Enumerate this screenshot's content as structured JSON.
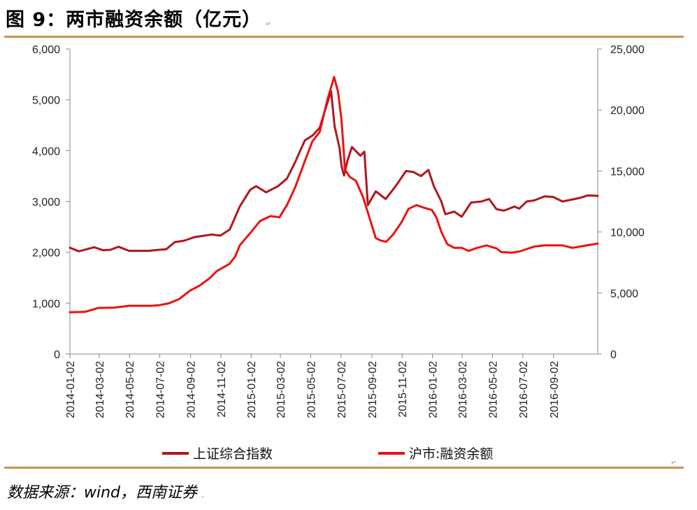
{
  "figure": {
    "title": "图 9：两市融资余额（亿元）",
    "source": "数据来源：wind，西南证券"
  },
  "colors": {
    "series_index": "#b0171f",
    "series_margin": "#ee1111",
    "rule": "#c8944a",
    "axis": "#888888"
  },
  "chart_data": {
    "type": "line",
    "title": "两市融资余额（亿元）",
    "x_axis": {
      "type": "date",
      "range": [
        "2014-01-02",
        "2016-11-30"
      ],
      "tick_labels": [
        "2014-01-02",
        "2014-03-02",
        "2014-05-02",
        "2014-07-02",
        "2014-09-02",
        "2014-11-02",
        "2015-01-02",
        "2015-03-02",
        "2015-05-02",
        "2015-07-02",
        "2015-09-02",
        "2015-11-02",
        "2016-01-02",
        "2016-03-02",
        "2016-05-02",
        "2016-07-02",
        "2016-09-02"
      ]
    },
    "y_axis_left": {
      "range": [
        0,
        6000
      ],
      "ticks": [
        0,
        1000,
        2000,
        3000,
        4000,
        5000,
        6000
      ],
      "tick_labels": [
        "0",
        "1,000",
        "2,000",
        "3,000",
        "4,000",
        "5,000",
        "6,000"
      ]
    },
    "y_axis_right": {
      "range": [
        0,
        25000
      ],
      "ticks": [
        0,
        5000,
        10000,
        15000,
        20000,
        25000
      ],
      "tick_labels": [
        "0",
        "5,000",
        "10,000",
        "15,000",
        "20,000",
        "25,000"
      ]
    },
    "grid": false,
    "legend_position": "bottom",
    "series": [
      {
        "name": "上证综合指数",
        "axis": "left",
        "color": "#b0171f",
        "points": [
          [
            "2014-01-02",
            2090
          ],
          [
            "2014-01-20",
            2020
          ],
          [
            "2014-02-20",
            2100
          ],
          [
            "2014-03-10",
            2040
          ],
          [
            "2014-03-25",
            2050
          ],
          [
            "2014-04-10",
            2110
          ],
          [
            "2014-05-01",
            2030
          ],
          [
            "2014-05-20",
            2030
          ],
          [
            "2014-06-10",
            2030
          ],
          [
            "2014-07-01",
            2050
          ],
          [
            "2014-07-15",
            2060
          ],
          [
            "2014-08-01",
            2200
          ],
          [
            "2014-08-20",
            2230
          ],
          [
            "2014-09-10",
            2300
          ],
          [
            "2014-09-25",
            2320
          ],
          [
            "2014-10-15",
            2350
          ],
          [
            "2014-11-01",
            2330
          ],
          [
            "2014-11-20",
            2450
          ],
          [
            "2014-12-10",
            2900
          ],
          [
            "2014-12-31",
            3230
          ],
          [
            "2015-01-12",
            3300
          ],
          [
            "2015-02-01",
            3180
          ],
          [
            "2015-02-25",
            3300
          ],
          [
            "2015-03-15",
            3450
          ],
          [
            "2015-03-31",
            3760
          ],
          [
            "2015-04-20",
            4200
          ],
          [
            "2015-05-06",
            4300
          ],
          [
            "2015-05-20",
            4450
          ],
          [
            "2015-06-08",
            5050
          ],
          [
            "2015-06-12",
            5170
          ],
          [
            "2015-06-19",
            4480
          ],
          [
            "2015-06-29",
            4050
          ],
          [
            "2015-07-03",
            3700
          ],
          [
            "2015-07-08",
            3510
          ],
          [
            "2015-07-15",
            3800
          ],
          [
            "2015-07-24",
            4070
          ],
          [
            "2015-08-10",
            3900
          ],
          [
            "2015-08-18",
            3980
          ],
          [
            "2015-08-25",
            2930
          ],
          [
            "2015-09-10",
            3200
          ],
          [
            "2015-09-30",
            3050
          ],
          [
            "2015-10-20",
            3300
          ],
          [
            "2015-11-10",
            3600
          ],
          [
            "2015-11-25",
            3580
          ],
          [
            "2015-12-10",
            3500
          ],
          [
            "2015-12-25",
            3620
          ],
          [
            "2016-01-05",
            3300
          ],
          [
            "2016-01-20",
            3000
          ],
          [
            "2016-01-28",
            2750
          ],
          [
            "2016-02-15",
            2800
          ],
          [
            "2016-03-01",
            2700
          ],
          [
            "2016-03-20",
            2980
          ],
          [
            "2016-04-10",
            3000
          ],
          [
            "2016-04-25",
            3050
          ],
          [
            "2016-05-10",
            2850
          ],
          [
            "2016-05-25",
            2820
          ],
          [
            "2016-06-15",
            2900
          ],
          [
            "2016-06-25",
            2860
          ],
          [
            "2016-07-10",
            3000
          ],
          [
            "2016-07-25",
            3020
          ],
          [
            "2016-08-15",
            3100
          ],
          [
            "2016-09-01",
            3090
          ],
          [
            "2016-09-20",
            3000
          ],
          [
            "2016-10-10",
            3040
          ],
          [
            "2016-10-25",
            3070
          ],
          [
            "2016-11-10",
            3120
          ],
          [
            "2016-11-30",
            3110
          ]
        ]
      },
      {
        "name": "沪市:融资余额",
        "axis": "right",
        "color": "#ee1111",
        "points": [
          [
            "2014-01-02",
            3420
          ],
          [
            "2014-02-01",
            3450
          ],
          [
            "2014-03-01",
            3780
          ],
          [
            "2014-04-01",
            3800
          ],
          [
            "2014-05-01",
            3950
          ],
          [
            "2014-06-01",
            3950
          ],
          [
            "2014-06-15",
            3950
          ],
          [
            "2014-07-01",
            4000
          ],
          [
            "2014-07-20",
            4150
          ],
          [
            "2014-08-10",
            4500
          ],
          [
            "2014-09-01",
            5200
          ],
          [
            "2014-09-20",
            5600
          ],
          [
            "2014-10-10",
            6200
          ],
          [
            "2014-10-25",
            6800
          ],
          [
            "2014-11-20",
            7400
          ],
          [
            "2014-12-01",
            8000
          ],
          [
            "2014-12-10",
            8900
          ],
          [
            "2014-12-31",
            9900
          ],
          [
            "2015-01-20",
            10900
          ],
          [
            "2015-02-10",
            11300
          ],
          [
            "2015-02-28",
            11200
          ],
          [
            "2015-03-15",
            12200
          ],
          [
            "2015-04-01",
            13700
          ],
          [
            "2015-04-20",
            15800
          ],
          [
            "2015-05-05",
            17400
          ],
          [
            "2015-05-20",
            18200
          ],
          [
            "2015-06-05",
            20900
          ],
          [
            "2015-06-18",
            22700
          ],
          [
            "2015-06-26",
            21500
          ],
          [
            "2015-07-03",
            19200
          ],
          [
            "2015-07-10",
            15100
          ],
          [
            "2015-07-20",
            14500
          ],
          [
            "2015-08-01",
            14200
          ],
          [
            "2015-08-15",
            12900
          ],
          [
            "2015-08-25",
            11600
          ],
          [
            "2015-09-10",
            9500
          ],
          [
            "2015-09-20",
            9300
          ],
          [
            "2015-10-01",
            9200
          ],
          [
            "2015-10-15",
            9800
          ],
          [
            "2015-11-01",
            10800
          ],
          [
            "2015-11-15",
            11900
          ],
          [
            "2015-12-01",
            12200
          ],
          [
            "2015-12-15",
            12000
          ],
          [
            "2016-01-01",
            11800
          ],
          [
            "2016-01-10",
            11200
          ],
          [
            "2016-01-20",
            10000
          ],
          [
            "2016-02-01",
            9000
          ],
          [
            "2016-02-15",
            8700
          ],
          [
            "2016-03-01",
            8700
          ],
          [
            "2016-03-15",
            8450
          ],
          [
            "2016-04-01",
            8700
          ],
          [
            "2016-04-20",
            8900
          ],
          [
            "2016-05-10",
            8650
          ],
          [
            "2016-05-20",
            8350
          ],
          [
            "2016-06-10",
            8300
          ],
          [
            "2016-06-25",
            8400
          ],
          [
            "2016-07-10",
            8600
          ],
          [
            "2016-07-25",
            8800
          ],
          [
            "2016-08-15",
            8900
          ],
          [
            "2016-09-01",
            8900
          ],
          [
            "2016-09-20",
            8900
          ],
          [
            "2016-10-10",
            8700
          ],
          [
            "2016-10-25",
            8800
          ],
          [
            "2016-11-15",
            8950
          ],
          [
            "2016-11-30",
            9050
          ]
        ]
      }
    ]
  }
}
